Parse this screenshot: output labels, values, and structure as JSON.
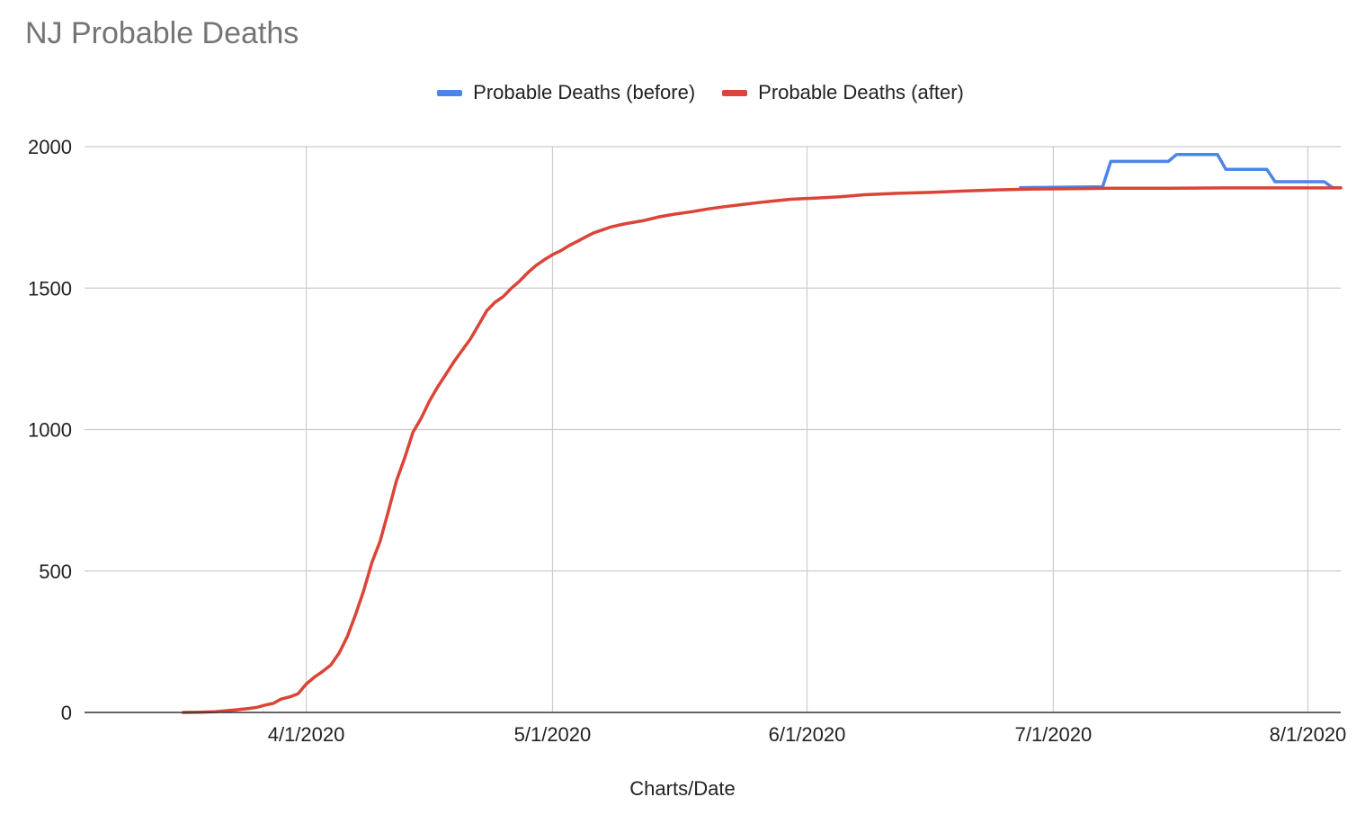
{
  "chart_data": {
    "type": "line",
    "title": "NJ Probable Deaths",
    "xlabel": "Charts/Date",
    "ylabel": "",
    "x_range": [
      "2020-03-05",
      "2020-08-05"
    ],
    "ylim": [
      0,
      2000
    ],
    "y_ticks": [
      0,
      500,
      1000,
      1500,
      2000
    ],
    "y_tick_labels": [
      "0",
      "500",
      "1000",
      "1500",
      "2000"
    ],
    "x_ticks": [
      "2020-04-01",
      "2020-05-01",
      "2020-06-01",
      "2020-07-01",
      "2020-08-01"
    ],
    "x_tick_labels": [
      "4/1/2020",
      "5/1/2020",
      "6/1/2020",
      "7/1/2020",
      "8/1/2020"
    ],
    "grid": true,
    "legend_position": "top",
    "series": [
      {
        "name": "Probable Deaths (before)",
        "color": "#4A86E8",
        "points": [
          [
            "2020-06-27",
            1855
          ],
          [
            "2020-07-06",
            1858
          ],
          [
            "2020-07-07",
            1858
          ],
          [
            "2020-07-08",
            1948
          ],
          [
            "2020-07-15",
            1948
          ],
          [
            "2020-07-16",
            1972
          ],
          [
            "2020-07-21",
            1972
          ],
          [
            "2020-07-22",
            1920
          ],
          [
            "2020-07-27",
            1920
          ],
          [
            "2020-07-28",
            1876
          ],
          [
            "2020-08-03",
            1876
          ],
          [
            "2020-08-04",
            1855
          ],
          [
            "2020-08-05",
            1855
          ]
        ]
      },
      {
        "name": "Probable Deaths (after)",
        "color": "#DB4437",
        "points": [
          [
            "2020-03-17",
            0
          ],
          [
            "2020-03-19",
            1
          ],
          [
            "2020-03-21",
            3
          ],
          [
            "2020-03-23",
            8
          ],
          [
            "2020-03-25",
            14
          ],
          [
            "2020-03-26",
            18
          ],
          [
            "2020-03-27",
            26
          ],
          [
            "2020-03-28",
            32
          ],
          [
            "2020-03-29",
            48
          ],
          [
            "2020-03-30",
            55
          ],
          [
            "2020-03-31",
            66
          ],
          [
            "2020-04-01",
            100
          ],
          [
            "2020-04-02",
            125
          ],
          [
            "2020-04-03",
            145
          ],
          [
            "2020-04-04",
            168
          ],
          [
            "2020-04-05",
            210
          ],
          [
            "2020-04-06",
            268
          ],
          [
            "2020-04-07",
            345
          ],
          [
            "2020-04-08",
            430
          ],
          [
            "2020-04-09",
            530
          ],
          [
            "2020-04-10",
            605
          ],
          [
            "2020-04-11",
            710
          ],
          [
            "2020-04-12",
            820
          ],
          [
            "2020-04-13",
            900
          ],
          [
            "2020-04-14",
            990
          ],
          [
            "2020-04-15",
            1040
          ],
          [
            "2020-04-16",
            1100
          ],
          [
            "2020-04-17",
            1150
          ],
          [
            "2020-04-18",
            1195
          ],
          [
            "2020-04-19",
            1240
          ],
          [
            "2020-04-20",
            1280
          ],
          [
            "2020-04-21",
            1320
          ],
          [
            "2020-04-22",
            1370
          ],
          [
            "2020-04-23",
            1420
          ],
          [
            "2020-04-24",
            1450
          ],
          [
            "2020-04-25",
            1470
          ],
          [
            "2020-04-26",
            1500
          ],
          [
            "2020-04-27",
            1525
          ],
          [
            "2020-04-28",
            1555
          ],
          [
            "2020-04-29",
            1580
          ],
          [
            "2020-04-30",
            1600
          ],
          [
            "2020-05-01",
            1618
          ],
          [
            "2020-05-02",
            1632
          ],
          [
            "2020-05-03",
            1650
          ],
          [
            "2020-05-04",
            1665
          ],
          [
            "2020-05-05",
            1680
          ],
          [
            "2020-05-06",
            1695
          ],
          [
            "2020-05-07",
            1705
          ],
          [
            "2020-05-08",
            1715
          ],
          [
            "2020-05-09",
            1722
          ],
          [
            "2020-05-10",
            1728
          ],
          [
            "2020-05-12",
            1738
          ],
          [
            "2020-05-14",
            1752
          ],
          [
            "2020-05-16",
            1762
          ],
          [
            "2020-05-18",
            1770
          ],
          [
            "2020-05-20",
            1780
          ],
          [
            "2020-05-22",
            1788
          ],
          [
            "2020-05-24",
            1795
          ],
          [
            "2020-05-26",
            1802
          ],
          [
            "2020-05-28",
            1808
          ],
          [
            "2020-05-30",
            1814
          ],
          [
            "2020-06-02",
            1818
          ],
          [
            "2020-06-05",
            1823
          ],
          [
            "2020-06-08",
            1830
          ],
          [
            "2020-06-12",
            1835
          ],
          [
            "2020-06-16",
            1838
          ],
          [
            "2020-06-20",
            1843
          ],
          [
            "2020-06-24",
            1847
          ],
          [
            "2020-06-28",
            1850
          ],
          [
            "2020-07-02",
            1851
          ],
          [
            "2020-07-08",
            1853
          ],
          [
            "2020-07-15",
            1853
          ],
          [
            "2020-07-22",
            1854
          ],
          [
            "2020-07-29",
            1854
          ],
          [
            "2020-08-05",
            1854
          ]
        ]
      }
    ]
  }
}
